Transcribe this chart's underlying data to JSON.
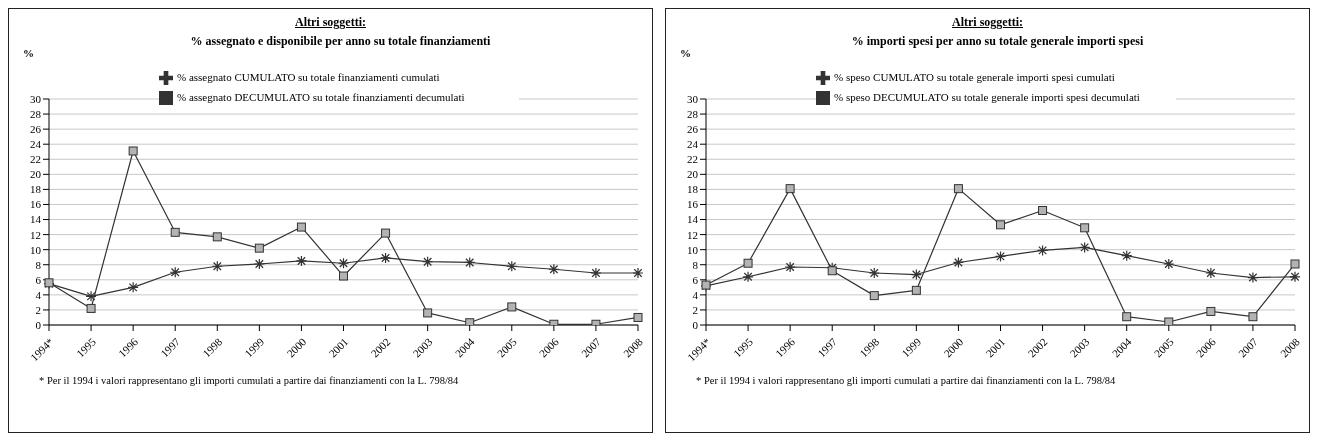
{
  "chart_data": [
    {
      "type": "line",
      "title": "Altri soggetti:",
      "subtitle": "% assegnato e disponibile per anno su totale finanziamenti",
      "ylabel": "%",
      "categories": [
        "1994*",
        "1995",
        "1996",
        "1997",
        "1998",
        "1999",
        "2000",
        "2001",
        "2002",
        "2003",
        "2004",
        "2005",
        "2006",
        "2007",
        "2008"
      ],
      "series": [
        {
          "name": "% assegnato CUMULATO su totale finanziamenti cumulati",
          "color": "#333333",
          "marker": "cross",
          "values": [
            5.5,
            3.8,
            5.0,
            7.0,
            7.8,
            8.1,
            8.5,
            8.2,
            8.9,
            8.4,
            8.3,
            7.8,
            7.4,
            6.9,
            6.9
          ]
        },
        {
          "name": "% assegnato DECUMULATO su totale finanziamenti decumulati",
          "color": "#333333",
          "marker": "square",
          "values": [
            5.6,
            2.2,
            23.1,
            12.3,
            11.7,
            10.2,
            13.0,
            6.5,
            12.2,
            1.6,
            0.3,
            2.4,
            0.1,
            0.1,
            1.0
          ]
        }
      ],
      "ylim": [
        0,
        30
      ],
      "yticks": [
        0,
        2,
        4,
        6,
        8,
        10,
        12,
        14,
        16,
        18,
        20,
        22,
        24,
        26,
        28,
        30
      ],
      "grid": "y",
      "legend": "top",
      "line_style": "solid",
      "annotations": [
        "* Per il 1994 i valori rappresentano gli importi cumulati a partire dai finanziamenti con la L. 798/84"
      ]
    },
    {
      "type": "line",
      "title": "Altri soggetti:",
      "subtitle": "% importi spesi per anno su totale generale importi spesi",
      "ylabel": "%",
      "categories": [
        "1994*",
        "1995",
        "1996",
        "1997",
        "1998",
        "1999",
        "2000",
        "2001",
        "2002",
        "2003",
        "2004",
        "2005",
        "2006",
        "2007",
        "2008"
      ],
      "series": [
        {
          "name": "% speso CUMULATO su totale generale importi spesi cumulati",
          "color": "#333333",
          "marker": "cross",
          "values": [
            5.2,
            6.4,
            7.7,
            7.6,
            6.9,
            6.7,
            8.3,
            9.1,
            9.9,
            10.3,
            9.2,
            8.1,
            6.9,
            6.3,
            6.4
          ]
        },
        {
          "name": "% speso DECUMULATO su totale generale importi spesi decumulati",
          "color": "#333333",
          "marker": "square",
          "values": [
            5.3,
            8.2,
            18.1,
            7.2,
            3.9,
            4.6,
            18.1,
            13.3,
            15.2,
            12.9,
            1.1,
            0.4,
            1.8,
            1.1,
            8.1
          ]
        }
      ],
      "ylim": [
        0,
        30
      ],
      "yticks": [
        0,
        2,
        4,
        6,
        8,
        10,
        12,
        14,
        16,
        18,
        20,
        22,
        24,
        26,
        28,
        30
      ],
      "grid": "y",
      "legend": "top",
      "line_style": "solid",
      "annotations": [
        "* Per il 1994 i valori rappresentano gli importi cumulati a partire dai finanziamenti con la L. 798/84"
      ]
    }
  ]
}
